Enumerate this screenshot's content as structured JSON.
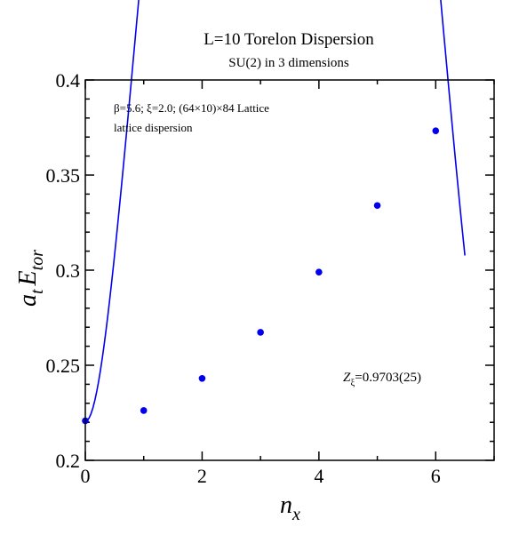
{
  "chart_data": {
    "type": "scatter",
    "title": "L=10 Torelon Dispersion",
    "subtitle": "SU(2) in 3 dimensions",
    "xlabel": {
      "base": "n",
      "sub": "x"
    },
    "ylabel": {
      "a": "a",
      "a_sub": "t",
      "E": "E",
      "E_sub": "tor"
    },
    "xlim": [
      0,
      7
    ],
    "ylim": [
      0.2,
      0.4
    ],
    "xticks": [
      0,
      2,
      4,
      6
    ],
    "xtick_labels": [
      "0",
      "2",
      "4",
      "6"
    ],
    "yticks": [
      0.2,
      0.25,
      0.3,
      0.35,
      0.4
    ],
    "ytick_labels": [
      "0.2",
      "0.25",
      "0.3",
      "0.35",
      "0.4"
    ],
    "grid": false,
    "annotations": {
      "line1": "β=5.6;  ξ=2.0; (64×10)×84 Lattice",
      "line2": "lattice dispersion",
      "z_base": "Z",
      "z_sub": "ξ",
      "z_value": "=0.9703(25)"
    },
    "series": [
      {
        "type": "scatter",
        "color": "#0000ee",
        "x": [
          0,
          1,
          2,
          3,
          4,
          5,
          6
        ],
        "y": [
          0.2208,
          0.2262,
          0.2431,
          0.2673,
          0.299,
          0.334,
          0.3733
        ]
      },
      {
        "type": "line",
        "color": "#0000ee",
        "x_range": [
          0,
          6.5
        ],
        "fit": {
          "E0": 0.2205,
          "Z": 0.9703,
          "xi": 2.0,
          "L": 10
        }
      }
    ]
  }
}
